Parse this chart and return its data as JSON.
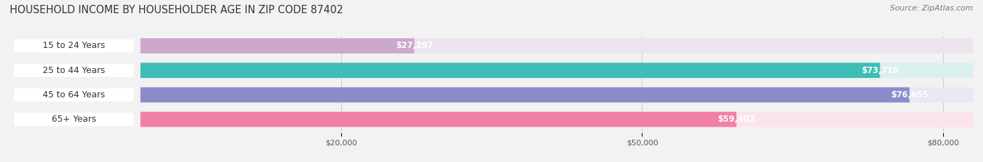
{
  "title": "HOUSEHOLD INCOME BY HOUSEHOLDER AGE IN ZIP CODE 87402",
  "source": "Source: ZipAtlas.com",
  "categories": [
    "15 to 24 Years",
    "25 to 44 Years",
    "45 to 64 Years",
    "65+ Years"
  ],
  "values": [
    27297,
    73710,
    76655,
    59402
  ],
  "bar_colors": [
    "#cba8cc",
    "#3dbdb6",
    "#8b8bcc",
    "#f080a8"
  ],
  "bg_colors": [
    "#ede5ee",
    "#daf0ef",
    "#e8e8f4",
    "#fce4ee"
  ],
  "value_labels": [
    "$27,297",
    "$73,710",
    "$76,655",
    "$59,402"
  ],
  "x_ticks": [
    20000,
    50000,
    80000
  ],
  "x_tick_labels": [
    "$20,000",
    "$50,000",
    "$80,000"
  ],
  "data_min": 0,
  "data_max": 83000,
  "xlim_min": -14000,
  "xlim_max": 83000,
  "background_color": "#f2f2f2",
  "title_fontsize": 10.5,
  "source_fontsize": 8,
  "label_fontsize": 9,
  "value_fontsize": 8.5,
  "tick_fontsize": 8
}
